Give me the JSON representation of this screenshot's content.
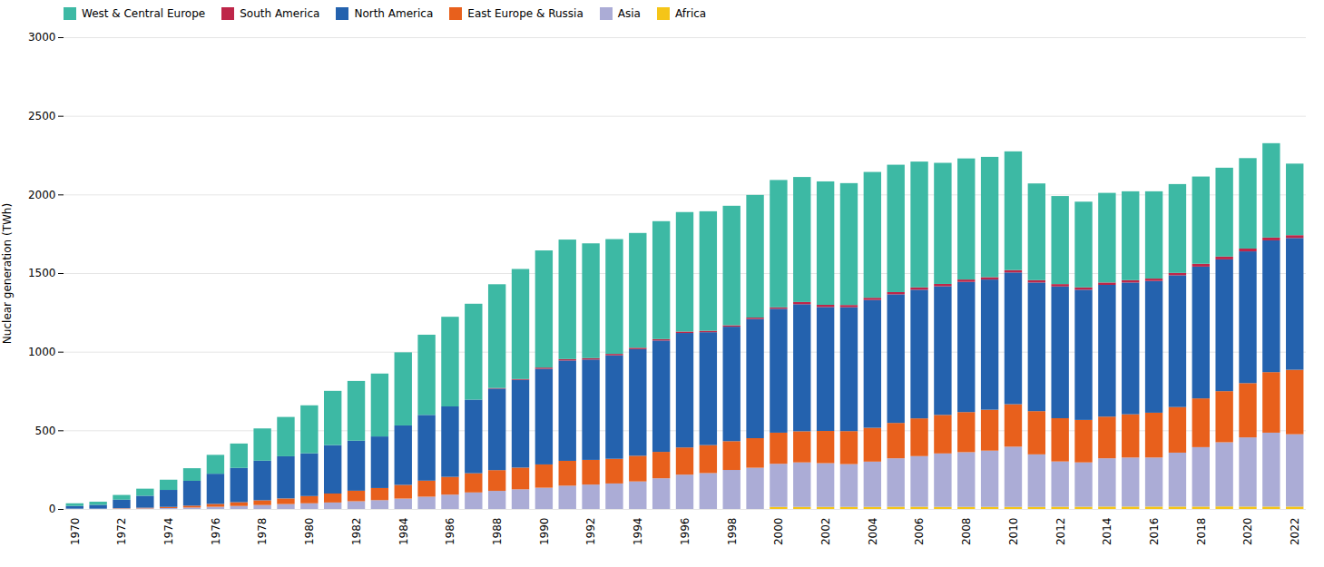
{
  "chart_data": {
    "type": "bar",
    "stacked": true,
    "ylabel": "Nuclear generation (TWh)",
    "categories": [
      "1970",
      null,
      "1972",
      null,
      "1974",
      null,
      "1976",
      null,
      "1978",
      null,
      "1980",
      null,
      "1982",
      null,
      "1984",
      null,
      "1986",
      null,
      "1988",
      null,
      "1990",
      null,
      "1992",
      null,
      "1994",
      null,
      "1996",
      null,
      "1998",
      null,
      "2000",
      null,
      "2002",
      null,
      "2004",
      null,
      "2006",
      null,
      "2008",
      null,
      "2010",
      null,
      "2012",
      null,
      "2014",
      null,
      "2016",
      null,
      "2018",
      null,
      "2020",
      null,
      "2022"
    ],
    "series": [
      {
        "name": "Africa",
        "color": "#F5C518",
        "values": [
          0,
          0,
          0,
          0,
          0,
          0,
          0,
          0,
          0,
          0,
          0,
          0,
          0,
          0,
          0,
          0,
          0,
          0,
          0,
          0,
          0,
          0,
          0,
          0,
          0,
          0,
          0,
          0,
          0,
          0,
          13,
          13,
          13,
          13,
          13,
          14,
          14,
          13,
          13,
          13,
          13,
          13,
          14,
          14,
          15,
          15,
          15,
          15,
          15,
          16,
          15,
          15,
          15
        ]
      },
      {
        "name": "Asia",
        "color": "#ABACD6",
        "values": [
          2,
          2,
          3,
          4,
          6,
          9,
          14,
          19,
          25,
          31,
          36,
          41,
          49,
          56,
          66,
          78,
          91,
          105,
          115,
          125,
          135,
          148,
          155,
          162,
          175,
          195,
          218,
          228,
          248,
          262,
          274,
          283,
          278,
          272,
          288,
          308,
          322,
          340,
          348,
          358,
          383,
          334,
          288,
          282,
          307,
          312,
          312,
          343,
          378,
          408,
          440,
          470,
          460
        ]
      },
      {
        "name": "East Europe & Russia",
        "color": "#E8601C",
        "values": [
          0,
          0,
          2,
          4,
          7,
          12,
          18,
          24,
          30,
          36,
          46,
          57,
          67,
          77,
          87,
          102,
          113,
          122,
          132,
          138,
          148,
          158,
          157,
          157,
          163,
          168,
          173,
          178,
          183,
          188,
          198,
          198,
          205,
          210,
          215,
          225,
          240,
          245,
          255,
          260,
          270,
          275,
          275,
          270,
          265,
          275,
          285,
          290,
          310,
          325,
          345,
          385,
          410
        ]
      },
      {
        "name": "North America",
        "color": "#2462AE",
        "values": [
          17,
          24,
          54,
          76,
          108,
          158,
          192,
          218,
          252,
          268,
          272,
          308,
          318,
          328,
          378,
          418,
          448,
          468,
          518,
          558,
          608,
          638,
          638,
          658,
          678,
          708,
          728,
          718,
          728,
          758,
          788,
          808,
          788,
          788,
          813,
          818,
          818,
          818,
          828,
          828,
          838,
          818,
          838,
          828,
          838,
          838,
          838,
          838,
          838,
          838,
          838,
          838,
          838
        ]
      },
      {
        "name": "South America",
        "color": "#BE2649",
        "values": [
          0,
          0,
          0,
          0,
          0,
          0,
          0,
          0,
          0,
          0,
          0,
          0,
          0,
          0,
          0,
          0,
          0,
          0,
          4,
          5,
          8,
          9,
          9,
          9,
          9,
          9,
          9,
          9,
          9,
          9,
          9,
          14,
          14,
          14,
          14,
          14,
          15,
          15,
          15,
          15,
          15,
          15,
          15,
          15,
          15,
          15,
          15,
          15,
          18,
          18,
          18,
          18,
          18
        ]
      },
      {
        "name": "West & Central Europe",
        "color": "#3DB9A4",
        "values": [
          17,
          20,
          30,
          45,
          65,
          80,
          120,
          155,
          205,
          250,
          305,
          345,
          380,
          400,
          465,
          510,
          570,
          610,
          660,
          700,
          745,
          760,
          730,
          730,
          730,
          750,
          760,
          760,
          760,
          780,
          810,
          795,
          785,
          775,
          800,
          810,
          800,
          770,
          770,
          765,
          755,
          615,
          560,
          545,
          570,
          565,
          555,
          565,
          555,
          565,
          575,
          600,
          455
        ]
      }
    ],
    "ylim": [
      0,
      3000
    ],
    "yticks": [
      0,
      500,
      1000,
      1500,
      2000,
      2500,
      3000
    ],
    "grid": true,
    "legend": "upper left"
  }
}
